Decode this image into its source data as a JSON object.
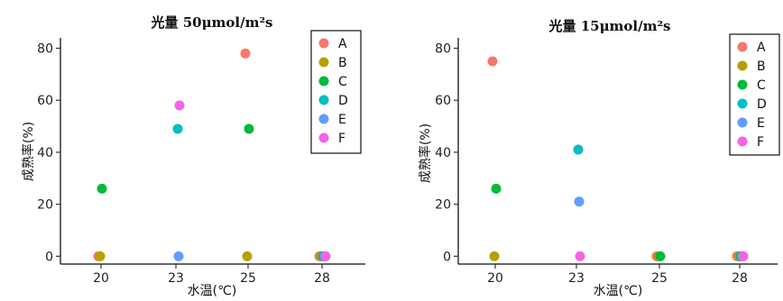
{
  "chart_data": [
    {
      "type": "scatter",
      "title": "光量 50μmol/m²s",
      "xlabel": "水温(℃)",
      "ylabel": "成熟率(%)",
      "categories": [
        "20",
        "23",
        "25",
        "28"
      ],
      "ylim": [
        -3,
        84
      ],
      "yticks": [
        0,
        20,
        40,
        60,
        80
      ],
      "grid": false,
      "legend_position": "top-right",
      "series": [
        {
          "name": "A",
          "color": "#f8766d",
          "values": [
            0,
            null,
            78,
            0
          ]
        },
        {
          "name": "B",
          "color": "#b79f00",
          "values": [
            0,
            null,
            0,
            0
          ]
        },
        {
          "name": "C",
          "color": "#00ba38",
          "values": [
            26,
            null,
            49,
            0
          ]
        },
        {
          "name": "D",
          "color": "#00bfc4",
          "values": [
            null,
            49,
            null,
            0
          ]
        },
        {
          "name": "E",
          "color": "#619cff",
          "values": [
            null,
            0,
            null,
            0
          ]
        },
        {
          "name": "F",
          "color": "#f564e3",
          "values": [
            null,
            58,
            null,
            0
          ]
        }
      ]
    },
    {
      "type": "scatter",
      "title": "光量 15μmol/m²s",
      "xlabel": "水温(℃)",
      "ylabel": "成熟率(%)",
      "categories": [
        "20",
        "23",
        "25",
        "28"
      ],
      "ylim": [
        -3,
        84
      ],
      "yticks": [
        0,
        20,
        40,
        60,
        80
      ],
      "grid": false,
      "legend_position": "top-right",
      "series": [
        {
          "name": "A",
          "color": "#f8766d",
          "values": [
            75,
            null,
            0,
            0
          ]
        },
        {
          "name": "B",
          "color": "#b79f00",
          "values": [
            0,
            null,
            0,
            0
          ]
        },
        {
          "name": "C",
          "color": "#00ba38",
          "values": [
            26,
            null,
            0,
            0
          ]
        },
        {
          "name": "D",
          "color": "#00bfc4",
          "values": [
            null,
            41,
            null,
            0
          ]
        },
        {
          "name": "E",
          "color": "#619cff",
          "values": [
            null,
            21,
            null,
            0
          ]
        },
        {
          "name": "F",
          "color": "#f564e3",
          "values": [
            null,
            0,
            null,
            0
          ]
        }
      ]
    }
  ]
}
